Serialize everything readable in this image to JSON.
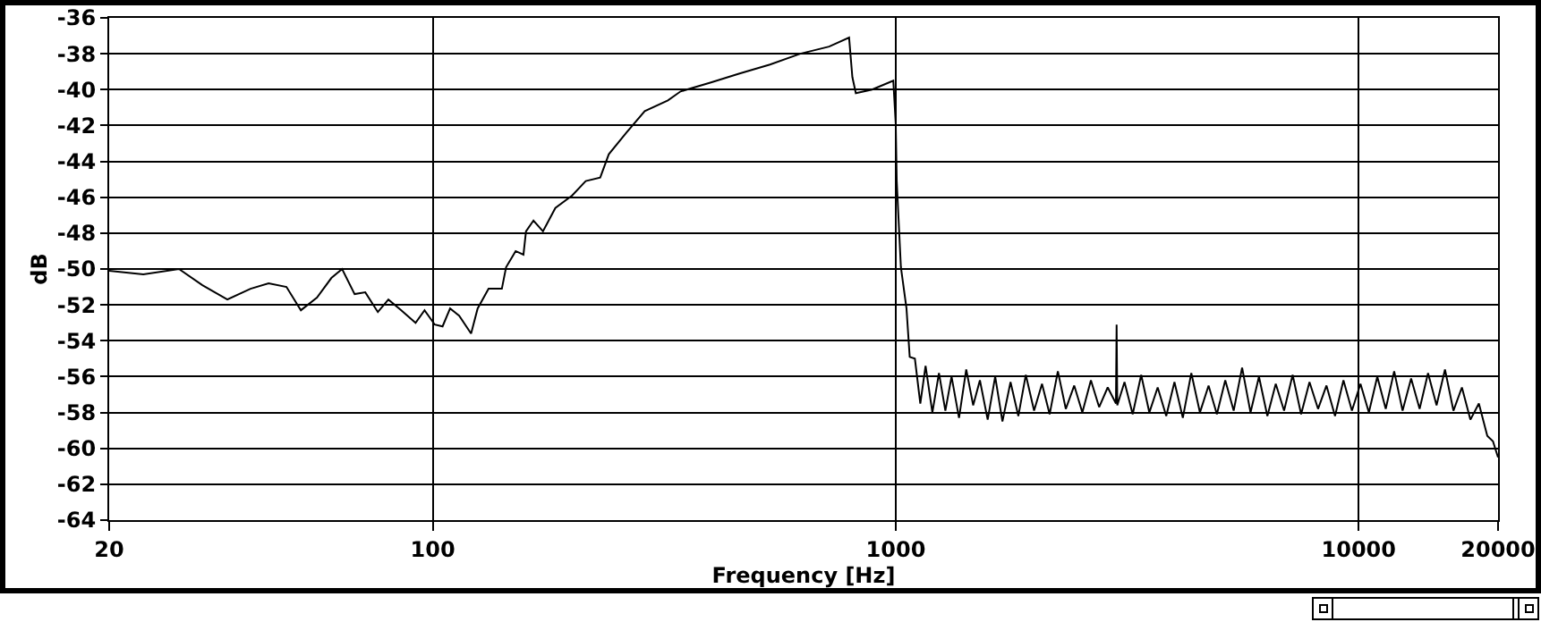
{
  "chart_data": {
    "type": "line",
    "xlabel": "Frequency [Hz]",
    "ylabel": "dB",
    "log": "x",
    "grid": true,
    "color": "#000000",
    "xlim": [
      20,
      20000
    ],
    "xticks": [
      20,
      100,
      1000,
      10000,
      20000
    ],
    "ylim": [
      -64,
      -36
    ],
    "yticks": [
      -64,
      -62,
      -60,
      -58,
      -56,
      -54,
      -52,
      -50,
      -48,
      -46,
      -44,
      -42,
      -40,
      -38,
      -36
    ],
    "x": [
      20,
      23.7,
      28.3,
      31.8,
      36,
      40.4,
      44.2,
      48.3,
      51.9,
      56.2,
      60.4,
      63.7,
      67.8,
      71.5,
      76.1,
      80.2,
      85.5,
      91.8,
      96,
      101,
      105,
      109,
      114,
      121,
      125,
      132,
      141,
      144,
      151,
      157,
      159,
      165,
      173,
      184,
      200,
      214,
      230,
      240,
      262,
      287,
      322,
      343,
      399,
      460,
      535,
      622,
      718,
      793,
      806,
      820,
      889,
      988,
      1000,
      1005,
      1026,
      1055,
      1072,
      1100,
      1130,
      1160,
      1200,
      1240,
      1280,
      1320,
      1370,
      1420,
      1470,
      1520,
      1580,
      1640,
      1700,
      1770,
      1840,
      1910,
      1990,
      2070,
      2150,
      2240,
      2330,
      2430,
      2530,
      2640,
      2750,
      2870,
      2990,
      3000,
      3010,
      3120,
      3250,
      3390,
      3530,
      3680,
      3840,
      4000,
      4170,
      4350,
      4540,
      4740,
      4940,
      5150,
      5370,
      5600,
      5840,
      6090,
      6350,
      6620,
      6900,
      7200,
      7510,
      7830,
      8170,
      8520,
      8890,
      9270,
      9670,
      10090,
      10520,
      10970,
      11440,
      11930,
      12440,
      12980,
      13540,
      14120,
      14730,
      15360,
      16020,
      16710,
      17430,
      18180,
      18960,
      19500,
      20000
    ],
    "values": [
      -50.1,
      -50.3,
      -50.0,
      -50.9,
      -51.7,
      -51.1,
      -50.8,
      -51.0,
      -52.3,
      -51.6,
      -50.5,
      -50.0,
      -51.4,
      -51.3,
      -52.4,
      -51.7,
      -52.3,
      -53.0,
      -52.3,
      -53.1,
      -53.2,
      -52.2,
      -52.6,
      -53.6,
      -52.2,
      -51.1,
      -51.1,
      -49.9,
      -49.0,
      -49.2,
      -47.9,
      -47.3,
      -47.9,
      -46.6,
      -45.9,
      -45.1,
      -44.9,
      -43.6,
      -42.4,
      -41.2,
      -40.6,
      -40.1,
      -39.6,
      -39.1,
      -38.6,
      -38.0,
      -37.6,
      -37.1,
      -39.3,
      -40.2,
      -40.0,
      -39.5,
      -41.9,
      -45.1,
      -49.9,
      -52.2,
      -54.9,
      -55.0,
      -57.5,
      -55.4,
      -58.0,
      -55.8,
      -57.9,
      -56.0,
      -58.3,
      -55.6,
      -57.6,
      -56.2,
      -58.4,
      -56.0,
      -58.5,
      -56.3,
      -58.2,
      -55.9,
      -57.9,
      -56.4,
      -58.1,
      -55.7,
      -57.8,
      -56.5,
      -58.0,
      -56.2,
      -57.7,
      -56.6,
      -57.5,
      -53.1,
      -57.6,
      -56.3,
      -58.1,
      -55.9,
      -58.0,
      -56.6,
      -58.2,
      -56.3,
      -58.3,
      -55.8,
      -58.0,
      -56.5,
      -58.1,
      -56.2,
      -57.9,
      -55.5,
      -58.0,
      -56.0,
      -58.2,
      -56.4,
      -57.9,
      -55.9,
      -58.1,
      -56.3,
      -57.8,
      -56.5,
      -58.2,
      -56.2,
      -57.9,
      -56.4,
      -58.0,
      -56.0,
      -57.8,
      -55.7,
      -57.9,
      -56.1,
      -57.8,
      -55.8,
      -57.6,
      -55.6,
      -57.9,
      -56.6,
      -58.4,
      -57.5,
      -59.3,
      -59.6,
      -60.5
    ]
  }
}
